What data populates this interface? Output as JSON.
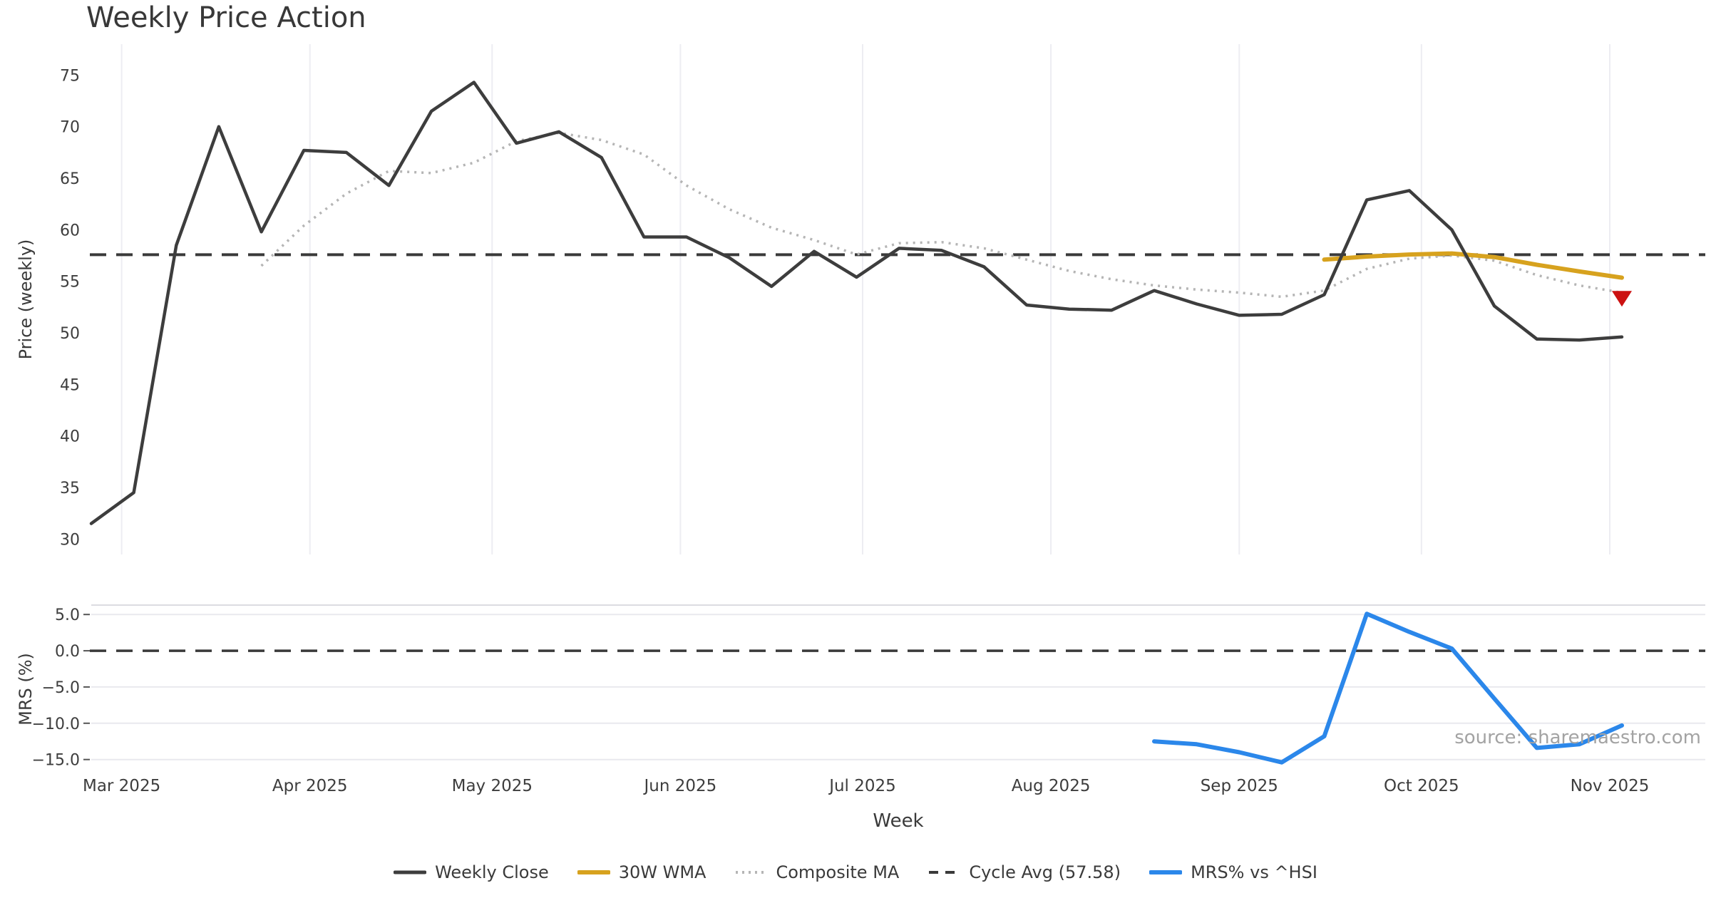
{
  "title": "Weekly Price Action",
  "source": "source: sharemaestro.com",
  "axes": {
    "price_label": "Price (weekly)",
    "mrs_label": "MRS (%)",
    "x_label": "Week",
    "price_ticks": [
      75,
      70,
      65,
      60,
      55,
      50,
      45,
      40,
      35,
      30
    ],
    "mrs_ticks": [
      {
        "value": 5,
        "label": "5.0"
      },
      {
        "value": 0,
        "label": "0.0"
      },
      {
        "value": -5,
        "label": "−5.0"
      },
      {
        "value": -10,
        "label": "−10.0"
      },
      {
        "value": -15,
        "label": "−15.0"
      }
    ],
    "month_ticks": [
      {
        "date": "2025-03-01",
        "label": "Mar 2025"
      },
      {
        "date": "2025-04-01",
        "label": "Apr 2025"
      },
      {
        "date": "2025-05-01",
        "label": "May 2025"
      },
      {
        "date": "2025-06-01",
        "label": "Jun 2025"
      },
      {
        "date": "2025-07-01",
        "label": "Jul 2025"
      },
      {
        "date": "2025-08-01",
        "label": "Aug 2025"
      },
      {
        "date": "2025-09-01",
        "label": "Sep 2025"
      },
      {
        "date": "2025-10-01",
        "label": "Oct 2025"
      },
      {
        "date": "2025-11-01",
        "label": "Nov 2025"
      }
    ],
    "price_range": [
      28.5,
      78.0
    ],
    "mrs_range": [
      -16.9,
      6.3
    ],
    "grid": {
      "price_panel": "vertical-month-lines",
      "mrs_panel": "horizontal-lines"
    }
  },
  "chart_data": {
    "type": "line",
    "x": [
      "2025-02-24",
      "2025-03-03",
      "2025-03-10",
      "2025-03-17",
      "2025-03-24",
      "2025-03-31",
      "2025-04-07",
      "2025-04-14",
      "2025-04-21",
      "2025-04-28",
      "2025-05-05",
      "2025-05-12",
      "2025-05-19",
      "2025-05-26",
      "2025-06-02",
      "2025-06-09",
      "2025-06-16",
      "2025-06-23",
      "2025-06-30",
      "2025-07-07",
      "2025-07-14",
      "2025-07-21",
      "2025-07-28",
      "2025-08-04",
      "2025-08-11",
      "2025-08-18",
      "2025-08-25",
      "2025-09-01",
      "2025-09-08",
      "2025-09-15",
      "2025-09-22",
      "2025-09-29",
      "2025-10-06",
      "2025-10-13",
      "2025-10-20",
      "2025-10-27",
      "2025-11-03"
    ],
    "series": [
      {
        "name": "Weekly Close",
        "style": "solid",
        "panel": "price",
        "color": "#3d3d3d",
        "width": 4.5,
        "values": [
          31.5,
          34.5,
          58.5,
          70.0,
          59.8,
          67.7,
          67.5,
          64.3,
          71.5,
          74.3,
          68.4,
          69.5,
          67.0,
          59.3,
          59.3,
          57.3,
          54.5,
          57.9,
          55.4,
          58.2,
          58.0,
          56.4,
          52.7,
          52.3,
          52.2,
          54.1,
          52.8,
          51.7,
          51.8,
          53.7,
          62.9,
          63.8,
          60.0,
          52.6,
          49.4,
          49.3,
          49.6
        ]
      },
      {
        "name": "30W WMA",
        "style": "solid",
        "panel": "price",
        "color": "#d7a21e",
        "width": 6,
        "values": [
          null,
          null,
          null,
          null,
          null,
          null,
          null,
          null,
          null,
          null,
          null,
          null,
          null,
          null,
          null,
          null,
          null,
          null,
          null,
          null,
          null,
          null,
          null,
          null,
          null,
          null,
          null,
          null,
          null,
          57.1,
          57.4,
          57.6,
          57.7,
          57.35,
          56.6,
          55.95,
          55.35
        ]
      },
      {
        "name": "Composite MA",
        "style": "dotted",
        "panel": "price",
        "color": "#b5b5b5",
        "width": 3.5,
        "values": [
          null,
          null,
          null,
          null,
          56.5,
          60.4,
          63.5,
          65.7,
          65.5,
          66.5,
          68.6,
          69.4,
          68.7,
          67.3,
          64.3,
          62.0,
          60.2,
          59.0,
          57.6,
          58.7,
          58.8,
          58.2,
          57.1,
          56.0,
          55.2,
          54.6,
          54.2,
          53.9,
          53.5,
          54.1,
          56.2,
          57.2,
          57.5,
          57.0,
          55.6,
          54.6,
          53.9
        ]
      },
      {
        "name": "Cycle Avg (57.58)",
        "style": "dashed-hline",
        "panel": "price",
        "color": "#3a3a3a",
        "width": 4,
        "value": 57.58
      },
      {
        "name": "MRS% vs ^HSI",
        "style": "solid",
        "panel": "mrs",
        "color": "#2b87ea",
        "width": 6,
        "values": [
          null,
          null,
          null,
          null,
          null,
          null,
          null,
          null,
          null,
          null,
          null,
          null,
          null,
          null,
          null,
          null,
          null,
          null,
          null,
          null,
          null,
          null,
          null,
          null,
          null,
          -12.5,
          -12.9,
          -14.0,
          -15.4,
          -11.8,
          5.1,
          2.6,
          0.3,
          -6.6,
          -13.4,
          -12.9,
          -10.3
        ]
      }
    ],
    "mrs_zero_line": {
      "style": "dashed-hline",
      "value": 0,
      "color": "#3a3a3a",
      "width": 3.5
    },
    "marker": {
      "date": "2025-11-03",
      "value": 53.3,
      "shape": "triangle-down",
      "color": "#cc1111"
    }
  },
  "legend": {
    "items": [
      "Weekly Close",
      "30W WMA",
      "Composite MA",
      "Cycle Avg (57.58)",
      "MRS% vs ^HSI"
    ]
  },
  "colors": {
    "close": "#3d3d3d",
    "wma": "#d7a21e",
    "composite": "#b5b5b5",
    "cycle": "#3a3a3a",
    "mrs": "#2b87ea",
    "marker": "#cc1111",
    "grid": "#ededf2",
    "text": "#3d3d3d",
    "source_text": "#a3a3a3"
  }
}
